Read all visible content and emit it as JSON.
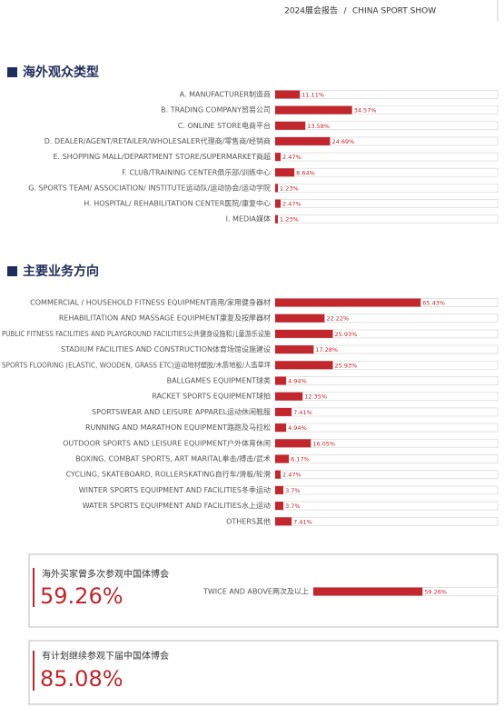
{
  "header": {
    "report": "2024展会报告",
    "separator": "/",
    "show": "CHINA SPORT SHOW"
  },
  "chart_data": [
    {
      "type": "bar",
      "orientation": "horizontal",
      "title": "海外观众类型",
      "color": "#c1272d",
      "xlim": [
        0,
        100
      ],
      "categories": [
        "A. MANUFACTURER制造商",
        "B. TRADING COMPANY贸易公司",
        "C. ONLINE STORE电商平台",
        "D. DEALER/AGENT/RETAILER/WHOLESALER代理商/零售商/经销商",
        "E. SHOPPING MALL/DEPARTMENT STORE/SUPERMARKET商超",
        "F. CLUB/TRAINING CENTER俱乐部/训练中心",
        "G. SPORTS TEAM/ ASSOCIATION/ INSTITUTE运动队/运动协会/运动学院",
        "H. HOSPITAL/ REHABILITATION CENTER医院/康复中心",
        "I. MEDIA媒体"
      ],
      "values": [
        11.11,
        34.57,
        13.58,
        24.69,
        2.47,
        8.64,
        1.23,
        2.47,
        1.23
      ],
      "value_labels": [
        "11.11%",
        "34.57%",
        "13.58%",
        "24.69%",
        "2.47%",
        "8.64%",
        "1.23%",
        "2.47%",
        "1.23%"
      ]
    },
    {
      "type": "bar",
      "orientation": "horizontal",
      "title": "主要业务方向",
      "color": "#c1272d",
      "xlim": [
        0,
        100
      ],
      "categories": [
        "COMMERCIAL / HOUSEHOLD FITNESS EQUIPMENT商用/家用健身器材",
        "REHABILITATION AND MASSAGE EQUIPMENT康复及按摩器材",
        "PUBLIC FITNESS FACILITIES AND PLAYGROUND FACILITIES公共健身设施和儿童游乐设施",
        "STADIUM FACILITIES AND CONSTRUCTION体育场馆设施建设",
        "SPORTS FLOORING (ELASTIC, WOODEN, GRASS ETC)运动地材塑胶/木质地板/人造草坪",
        "BALLGAMES EQUIPMENT球类",
        "RACKET SPORTS EQUIPMENT球拍",
        "SPORTSWEAR AND LEISURE APPAREL运动休闲鞋服",
        "RUNNING AND MARATHON EQUIPMENT路跑及马拉松",
        "OUTDOOR SPORTS AND LEISURE EQUIPMENT户外体育休闲",
        "BOXING, COMBAT SPORTS, ART MARITAL拳击/搏击/武术",
        "CYCLING, SKATEBOARD, ROLLERSKATING自行车/滑板/轮滑",
        "WINTER SPORTS EQUIPMENT AND FACILITIES冬季运动",
        "WATER SPORTS EQUIPMENT AND FACILITIES水上运动",
        "OTHERS其他"
      ],
      "values": [
        65.43,
        22.22,
        25.93,
        17.28,
        25.93,
        4.94,
        12.35,
        7.41,
        4.94,
        16.05,
        6.17,
        2.47,
        3.7,
        3.7,
        7.41
      ],
      "value_labels": [
        "65.43%",
        "22.22%",
        "25.93%",
        "17.28%",
        "25.93%",
        "4.94%",
        "12.35%",
        "7.41%",
        "4.94%",
        "16.05%",
        "6.17%",
        "2.47%",
        "3.7%",
        "3.7%",
        "7.41%"
      ]
    },
    {
      "type": "bar",
      "orientation": "horizontal",
      "color": "#c1272d",
      "xlim": [
        0,
        100
      ],
      "categories": [
        "TWICE AND ABOVE两次及以上"
      ],
      "values": [
        59.26
      ],
      "value_labels": [
        "59.26%"
      ]
    }
  ],
  "callouts": [
    {
      "text": "海外买家曾多次参观中国体博会",
      "figure": "59.26%"
    },
    {
      "text": "有计划继续参观下届中国体博会",
      "figure": "85.08%"
    }
  ]
}
